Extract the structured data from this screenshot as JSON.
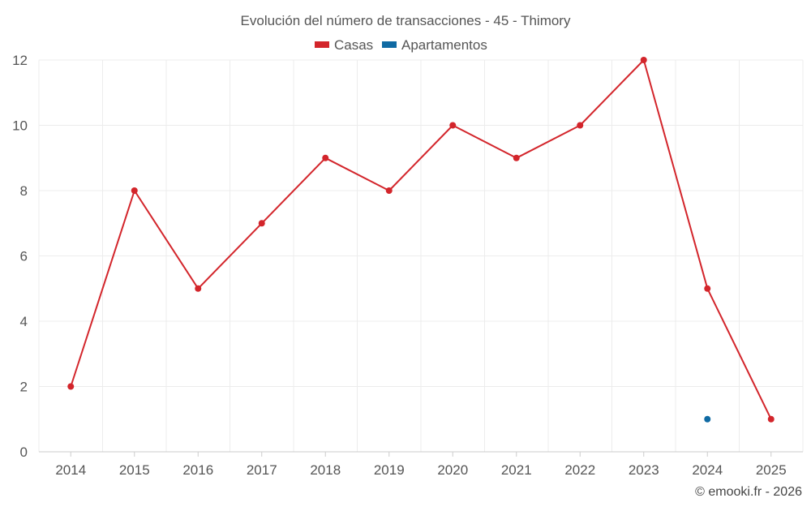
{
  "chart_data": {
    "type": "line",
    "title": "Evolución del número de transacciones - 45 - Thimory",
    "xlabel": "",
    "ylabel": "",
    "categories": [
      "2014",
      "2015",
      "2016",
      "2017",
      "2018",
      "2019",
      "2020",
      "2021",
      "2022",
      "2023",
      "2024",
      "2025"
    ],
    "ylim": [
      0,
      12
    ],
    "yticks": [
      0,
      2,
      4,
      6,
      8,
      10,
      12
    ],
    "grid": true,
    "legend_position": "top-center",
    "series": [
      {
        "name": "Casas",
        "color": "#d3252b",
        "values": [
          2,
          8,
          5,
          7,
          9,
          8,
          10,
          9,
          10,
          12,
          5,
          1
        ]
      },
      {
        "name": "Apartamentos",
        "color": "#0f6aa3",
        "values": [
          null,
          null,
          null,
          null,
          null,
          null,
          null,
          null,
          null,
          null,
          1,
          null
        ]
      }
    ]
  },
  "footer": {
    "credit": "© emooki.fr - 2026"
  }
}
